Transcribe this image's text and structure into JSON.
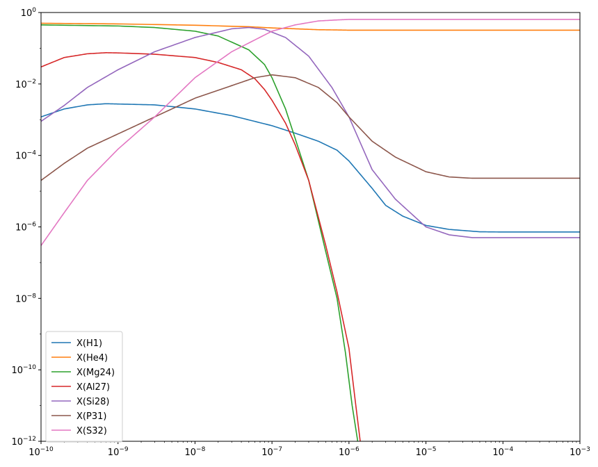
{
  "chart_data": {
    "type": "line",
    "title": "",
    "xlabel": "",
    "ylabel": "",
    "xscale": "log",
    "yscale": "log",
    "xlim": [
      1e-10,
      0.001
    ],
    "ylim": [
      1e-12,
      1
    ],
    "grid": false,
    "legend_position": "lower-left",
    "x_ticks": [
      {
        "value": 1e-10,
        "base": "10",
        "exp": "−10"
      },
      {
        "value": 1e-09,
        "base": "10",
        "exp": "−9"
      },
      {
        "value": 1e-08,
        "base": "10",
        "exp": "−8"
      },
      {
        "value": 1e-07,
        "base": "10",
        "exp": "−7"
      },
      {
        "value": 1e-06,
        "base": "10",
        "exp": "−6"
      },
      {
        "value": 1e-05,
        "base": "10",
        "exp": "−5"
      },
      {
        "value": 0.0001,
        "base": "10",
        "exp": "−4"
      },
      {
        "value": 0.001,
        "base": "10",
        "exp": "−3"
      }
    ],
    "y_ticks": [
      {
        "value": 1e-12,
        "base": "10",
        "exp": "−12"
      },
      {
        "value": 1e-10,
        "base": "10",
        "exp": "−10"
      },
      {
        "value": 1e-08,
        "base": "10",
        "exp": "−8"
      },
      {
        "value": 1e-06,
        "base": "10",
        "exp": "−6"
      },
      {
        "value": 0.0001,
        "base": "10",
        "exp": "−4"
      },
      {
        "value": 0.01,
        "base": "10",
        "exp": "−2"
      },
      {
        "value": 1,
        "base": "10",
        "exp": "0"
      }
    ],
    "series": [
      {
        "name": "X(H1)",
        "color": "#1f77b4",
        "x": [
          1e-10,
          2e-10,
          4e-10,
          7e-10,
          1e-09,
          3e-09,
          1e-08,
          3e-08,
          1e-07,
          2e-07,
          4e-07,
          7e-07,
          1e-06,
          2e-06,
          3e-06,
          5e-06,
          1e-05,
          2e-05,
          5e-05,
          0.0001,
          0.001
        ],
        "y": [
          0.0012,
          0.002,
          0.0026,
          0.0028,
          0.00275,
          0.0026,
          0.002,
          0.0013,
          0.00068,
          0.00042,
          0.00025,
          0.00014,
          7e-05,
          1.2e-05,
          4e-06,
          2e-06,
          1.1e-06,
          8.5e-07,
          7.3e-07,
          7.2e-07,
          7.2e-07
        ]
      },
      {
        "name": "X(He4)",
        "color": "#ff7f0e",
        "x": [
          1e-10,
          1e-09,
          1e-08,
          5e-08,
          1e-07,
          2e-07,
          4e-07,
          7e-07,
          1e-06,
          1e-05,
          0.001
        ],
        "y": [
          0.5,
          0.48,
          0.44,
          0.4,
          0.37,
          0.35,
          0.33,
          0.325,
          0.32,
          0.32,
          0.32
        ]
      },
      {
        "name": "X(Mg24)",
        "color": "#2ca02c",
        "x": [
          1e-10,
          1e-09,
          3e-09,
          1e-08,
          2e-08,
          5e-08,
          8e-08,
          1e-07,
          1.5e-07,
          2e-07,
          3e-07,
          5e-07,
          7e-07,
          9e-07,
          1.1e-06,
          1.3e-06
        ],
        "y": [
          0.45,
          0.42,
          0.38,
          0.3,
          0.22,
          0.09,
          0.035,
          0.015,
          0.002,
          0.0003,
          2e-05,
          2e-07,
          1e-08,
          3e-10,
          1e-11,
          1e-12
        ]
      },
      {
        "name": "X(Al27)",
        "color": "#d62728",
        "x": [
          1e-10,
          2e-10,
          4e-10,
          7e-10,
          1e-09,
          3e-09,
          1e-08,
          2e-08,
          4e-08,
          6e-08,
          8e-08,
          1e-07,
          1.5e-07,
          2e-07,
          3e-07,
          5e-07,
          7e-07,
          1e-06,
          1.2e-06,
          1.4e-06
        ],
        "y": [
          0.03,
          0.055,
          0.07,
          0.075,
          0.074,
          0.068,
          0.055,
          0.04,
          0.025,
          0.014,
          0.007,
          0.0035,
          0.0008,
          0.0002,
          2e-05,
          3e-07,
          1.5e-08,
          4e-10,
          1.5e-11,
          1e-12
        ]
      },
      {
        "name": "X(Si28)",
        "color": "#9467bd",
        "x": [
          1e-10,
          2e-10,
          4e-10,
          1e-09,
          3e-09,
          1e-08,
          3e-08,
          5e-08,
          8e-08,
          1.5e-07,
          3e-07,
          6e-07,
          1e-06,
          2e-06,
          4e-06,
          7e-06,
          1e-05,
          2e-05,
          4e-05,
          0.0001,
          0.001
        ],
        "y": [
          0.0009,
          0.0025,
          0.008,
          0.025,
          0.08,
          0.2,
          0.35,
          0.38,
          0.34,
          0.2,
          0.06,
          0.008,
          0.0012,
          4e-05,
          6e-06,
          2e-06,
          1e-06,
          6e-07,
          5e-07,
          5e-07,
          5e-07
        ]
      },
      {
        "name": "X(P31)",
        "color": "#8c564b",
        "x": [
          1e-10,
          2e-10,
          4e-10,
          1e-09,
          3e-09,
          1e-08,
          3e-08,
          6e-08,
          1e-07,
          2e-07,
          4e-07,
          7e-07,
          1e-06,
          2e-06,
          4e-06,
          1e-05,
          2e-05,
          4e-05,
          0.0001,
          0.001
        ],
        "y": [
          2e-05,
          6e-05,
          0.00016,
          0.0004,
          0.0012,
          0.004,
          0.009,
          0.015,
          0.018,
          0.015,
          0.008,
          0.003,
          0.0012,
          0.00025,
          9e-05,
          3.5e-05,
          2.5e-05,
          2.3e-05,
          2.3e-05,
          2.3e-05
        ]
      },
      {
        "name": "X(S32)",
        "color": "#e377c2",
        "x": [
          1e-10,
          2e-10,
          4e-10,
          1e-09,
          3e-09,
          1e-08,
          3e-08,
          1e-07,
          2e-07,
          4e-07,
          7e-07,
          1e-06,
          1e-05,
          0.001
        ],
        "y": [
          3e-07,
          2.5e-06,
          2e-05,
          0.00015,
          0.0012,
          0.015,
          0.08,
          0.3,
          0.45,
          0.58,
          0.62,
          0.64,
          0.64,
          0.64
        ]
      }
    ]
  }
}
